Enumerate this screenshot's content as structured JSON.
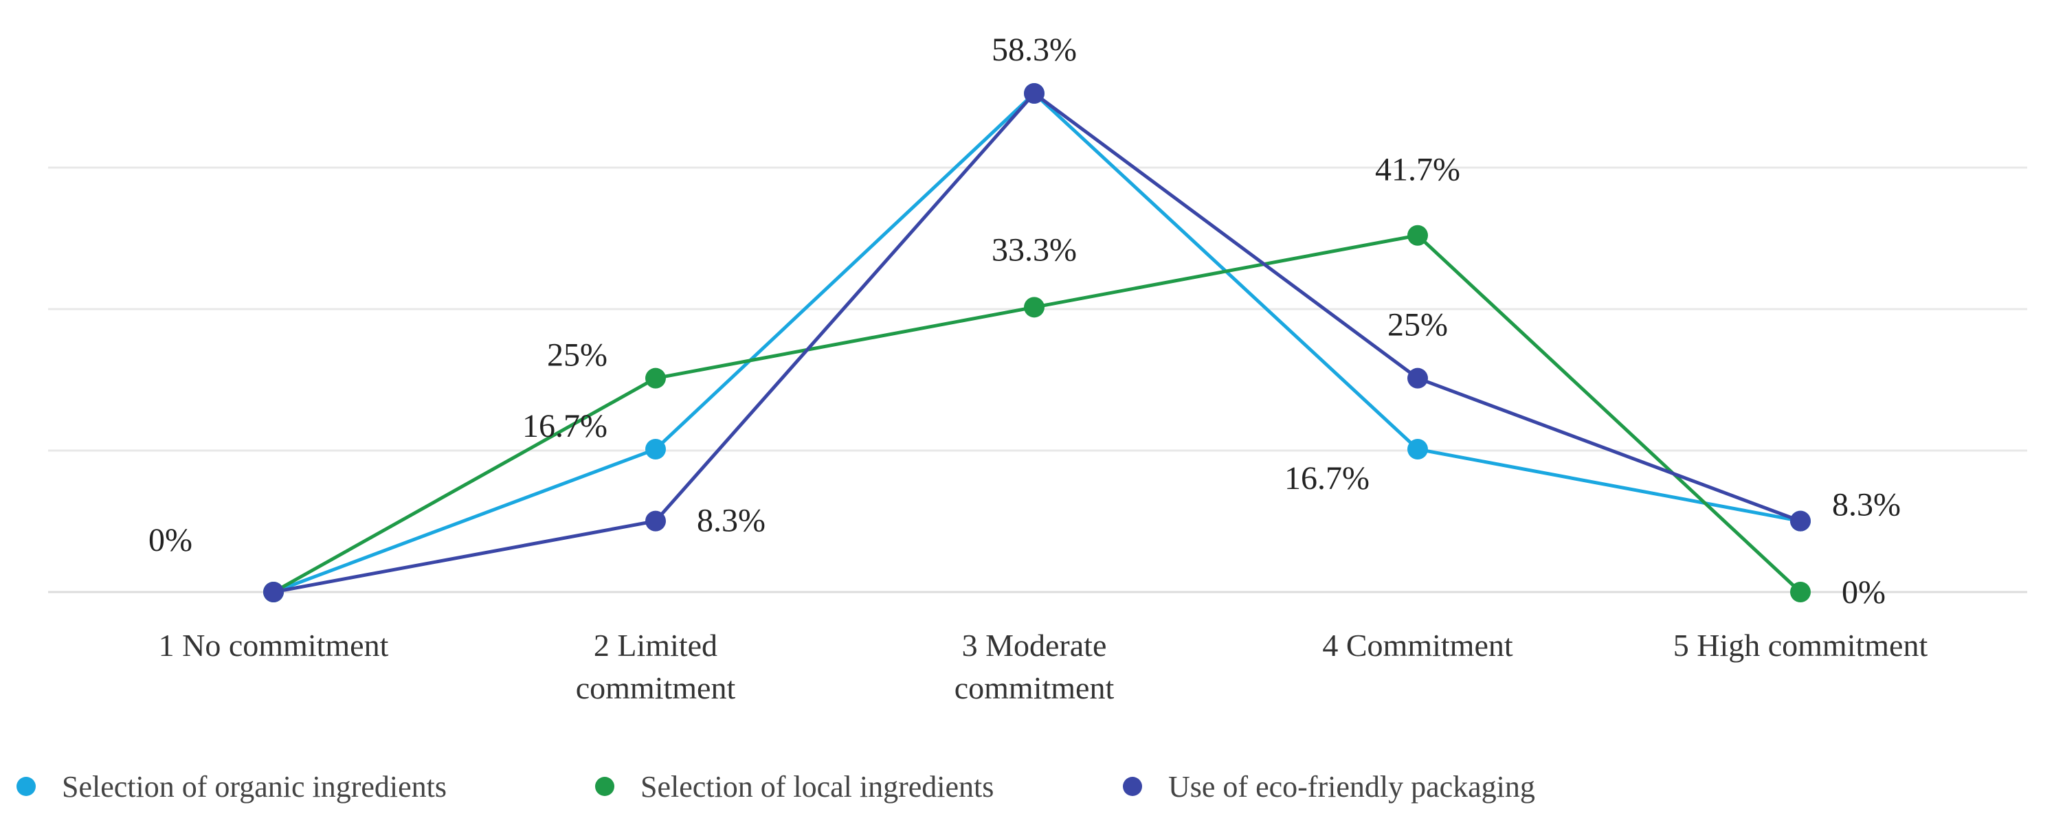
{
  "chart_data": {
    "type": "line",
    "title": "",
    "xlabel": "",
    "ylabel": "",
    "ylim": [
      0,
      60
    ],
    "grid": true,
    "legend_position": "bottom-left",
    "categories": [
      [
        "1 No commitment"
      ],
      [
        "2 Limited",
        "commitment"
      ],
      [
        "3 Moderate",
        "commitment"
      ],
      [
        "4 Commitment"
      ],
      [
        "5 High commitment"
      ]
    ],
    "series": [
      {
        "name": "Selection of organic ingredients",
        "color": "#1aa7e0",
        "values": [
          0,
          16.7,
          58.3,
          16.7,
          8.3
        ],
        "labels": [
          "",
          "16.7%",
          "",
          "16.7%",
          ""
        ]
      },
      {
        "name": "Selection of local ingredients",
        "color": "#1f9a48",
        "values": [
          0,
          25,
          33.3,
          41.7,
          0
        ],
        "labels": [
          "",
          "25%",
          "33.3%",
          "41.7%",
          "0%"
        ]
      },
      {
        "name": "Use of eco-friendly packaging",
        "color": "#3a46a6",
        "values": [
          0,
          8.3,
          58.3,
          25,
          8.3
        ],
        "labels": [
          "0%",
          "8.3%",
          "58.3%",
          "25%",
          "8.3%"
        ]
      }
    ]
  }
}
